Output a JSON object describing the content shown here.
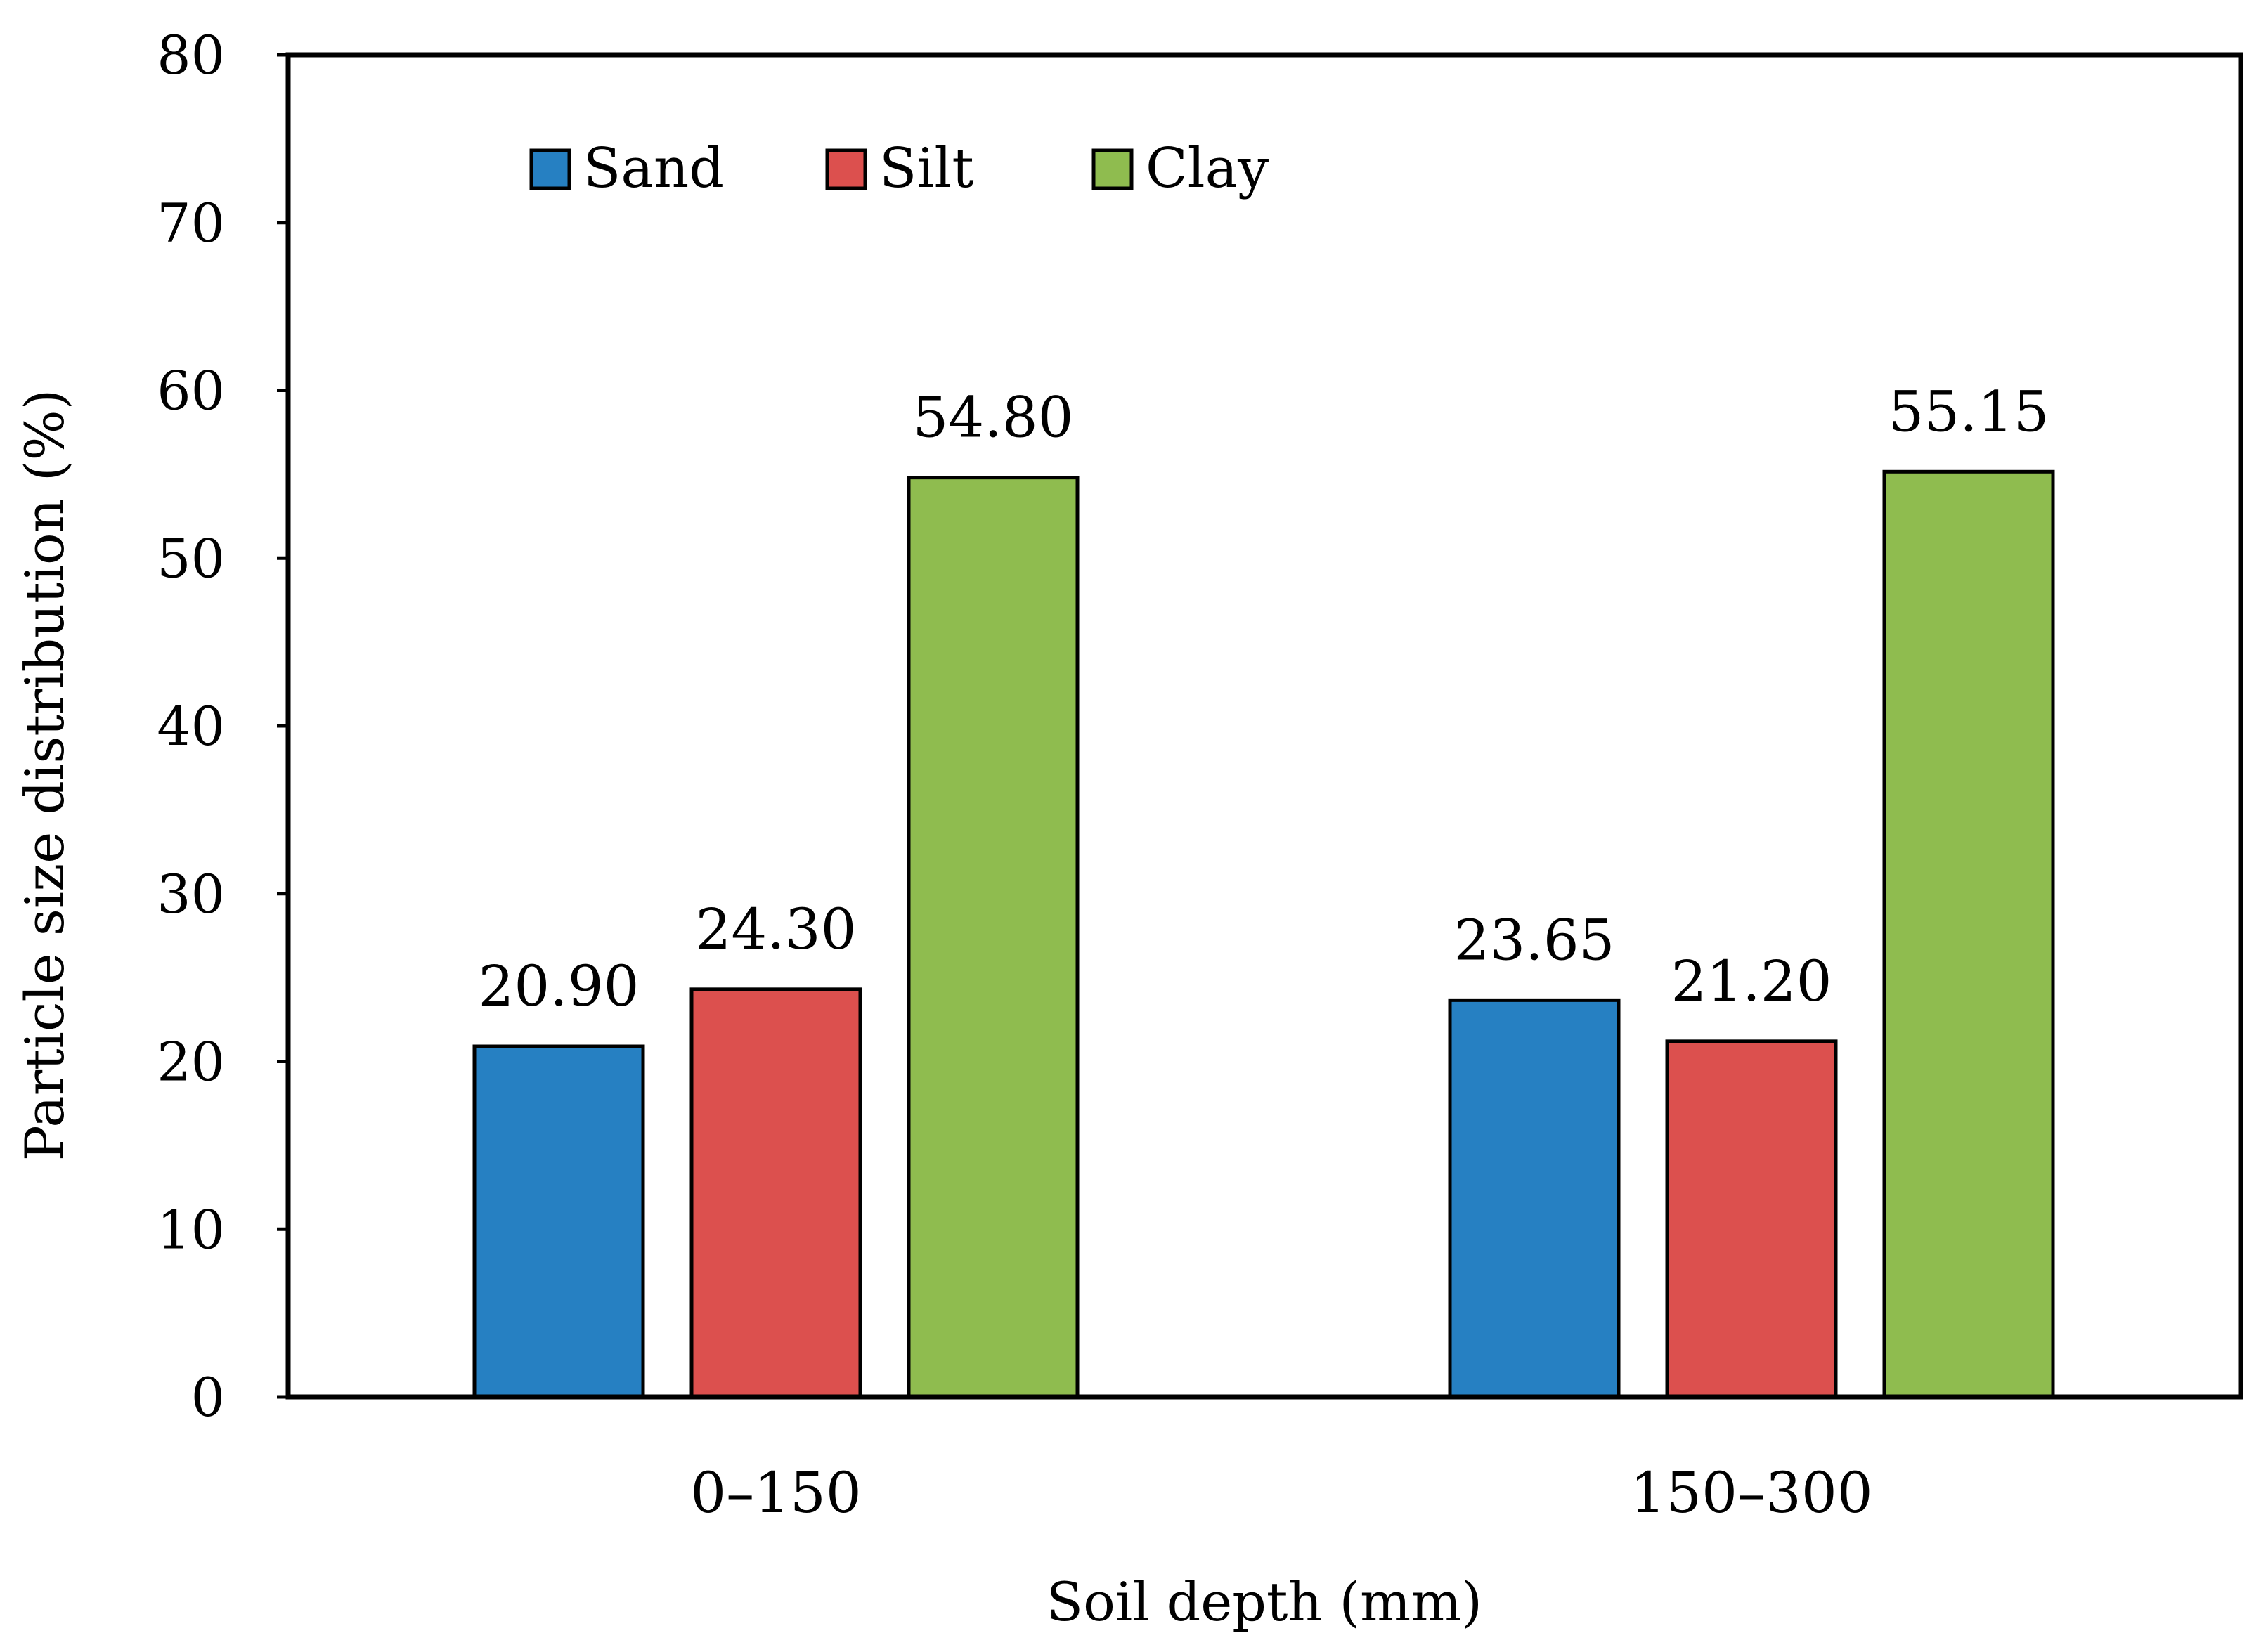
{
  "chart_data": {
    "type": "bar",
    "title": "",
    "xlabel": "Soil depth (mm)",
    "ylabel": "Particle size distribution (%)",
    "categories": [
      "0–150",
      "150–300"
    ],
    "series": [
      {
        "name": "Sand",
        "color": "#2680c2",
        "values": [
          20.9,
          23.65
        ],
        "labels": [
          "20.90",
          "23.65"
        ]
      },
      {
        "name": "Silt",
        "color": "#dc504e",
        "values": [
          24.3,
          21.2
        ],
        "labels": [
          "24.30",
          "21.20"
        ]
      },
      {
        "name": "Clay",
        "color": "#8fbc4f",
        "values": [
          54.8,
          55.15
        ],
        "labels": [
          "54.80",
          "55.15"
        ]
      }
    ],
    "ylim": [
      0,
      80
    ],
    "yticks": [
      0,
      10,
      20,
      30,
      40,
      50,
      60,
      70,
      80
    ],
    "grid": false,
    "legend_position": "top-left"
  }
}
